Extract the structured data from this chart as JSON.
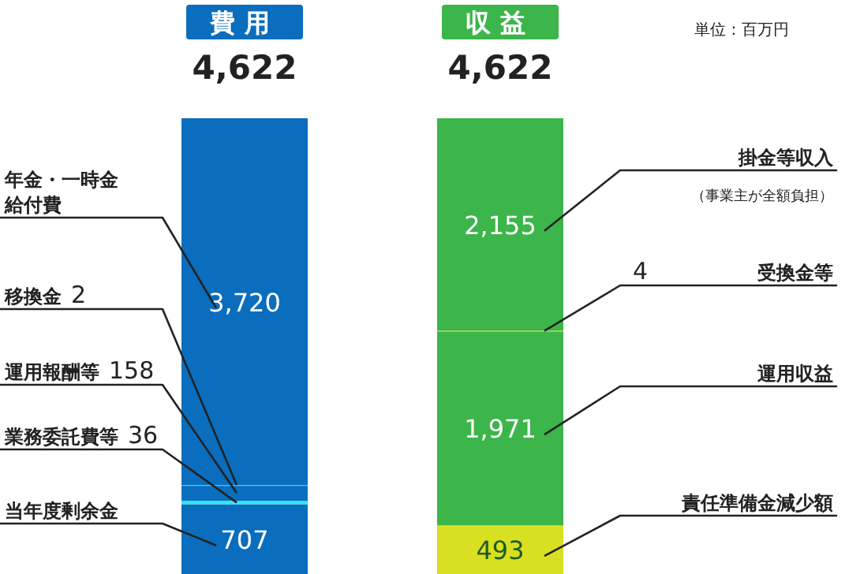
{
  "chart_data": {
    "type": "bar",
    "stacked": true,
    "categories": [
      "費用",
      "収益"
    ],
    "totals": [
      "4,622",
      "4,622"
    ],
    "series": [
      {
        "name": "当年度剰余金",
        "color": "#0a6dbd",
        "values": [
          707,
          null
        ],
        "value_labels": [
          "707",
          null
        ]
      },
      {
        "name": "業務委託費等",
        "color": "#2ee6f2",
        "values": [
          36,
          null
        ],
        "value_labels": [
          "36",
          null
        ]
      },
      {
        "name": "運用報酬等",
        "color": "#0a6dbd",
        "values": [
          158,
          null
        ],
        "value_labels": [
          "158",
          null
        ]
      },
      {
        "name": "移換金",
        "color": "#2ee6f2",
        "values": [
          2,
          null
        ],
        "value_labels": [
          "2",
          null
        ]
      },
      {
        "name": "年金・一時金給付費",
        "color": "#0a6dbd",
        "values": [
          3720,
          null
        ],
        "value_labels": [
          "3,720",
          null
        ]
      },
      {
        "name": "責任準備金減少額",
        "color": "#d9e021",
        "values": [
          null,
          493
        ],
        "value_labels": [
          null,
          "493"
        ]
      },
      {
        "name": "運用収益",
        "color": "#3cb54a",
        "values": [
          null,
          1971
        ],
        "value_labels": [
          null,
          "1,971"
        ]
      },
      {
        "name": "受換金等",
        "color": "#d9e021",
        "values": [
          null,
          4
        ],
        "value_labels": [
          null,
          "4"
        ]
      },
      {
        "name": "掛金等収入",
        "color": "#3cb54a",
        "values": [
          null,
          2155
        ],
        "value_labels": [
          null,
          "2,155"
        ]
      }
    ],
    "annotations": [
      "単位：百万円",
      "（事業主が全額負担）"
    ]
  }
}
